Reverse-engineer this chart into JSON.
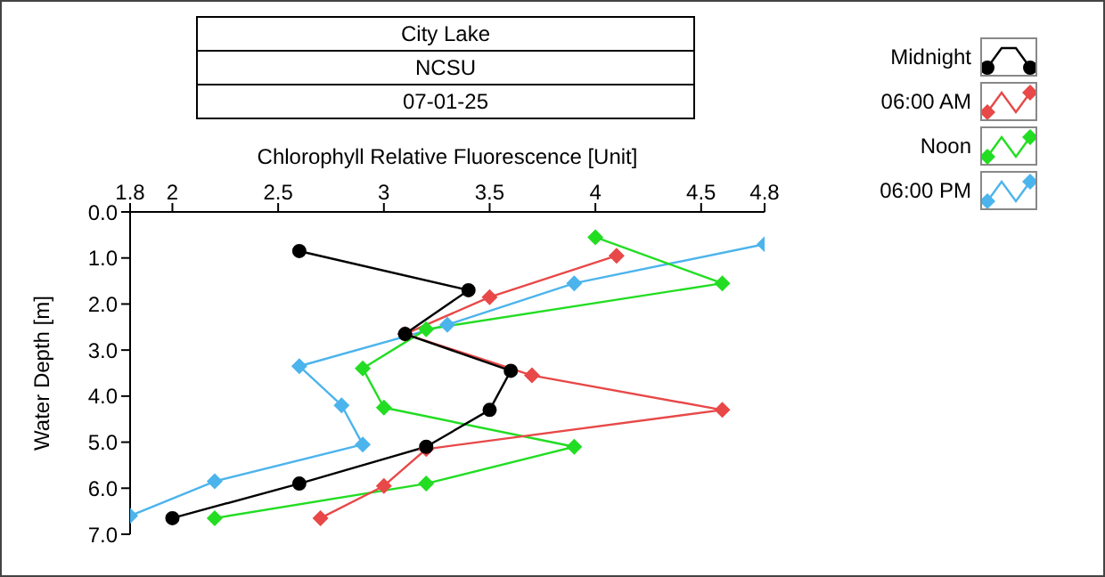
{
  "chart_data": {
    "type": "line",
    "title": "City Lake",
    "subtitle": "NCSU",
    "annotations": [
      "07-01-25"
    ],
    "xlabel": "Chlorophyll Relative Fluorescence [Unit]",
    "ylabel": "Water Depth [m]",
    "xlim": [
      1.8,
      4.8
    ],
    "xticks": [
      1.8,
      2,
      2.5,
      3,
      3.5,
      4,
      4.5,
      4.8
    ],
    "ylim": [
      7,
      0
    ],
    "yticks": [
      {
        "value": 0,
        "label": "0.0"
      },
      {
        "value": 1,
        "label": "1.0"
      },
      {
        "value": 2,
        "label": "2.0"
      },
      {
        "value": 3,
        "label": "3.0"
      },
      {
        "value": 4,
        "label": "4.0"
      },
      {
        "value": 5,
        "label": "5.0"
      },
      {
        "value": 6,
        "label": "6.0"
      },
      {
        "value": 7,
        "label": "7.0"
      }
    ],
    "legend": "top right",
    "line_style": "solid",
    "series": [
      {
        "name": "Midnight",
        "color": "#000000",
        "marker": "circle",
        "x": [
          2.6,
          3.4,
          3.1,
          3.6,
          3.5,
          3.2,
          2.6,
          2.0
        ],
        "values": [
          0.85,
          1.7,
          2.65,
          3.45,
          4.3,
          5.1,
          5.9,
          6.65
        ]
      },
      {
        "name": "06:00 AM",
        "color": "#e84848",
        "marker": "diamond",
        "x": [
          4.1,
          3.5,
          3.1,
          3.7,
          4.6,
          3.2,
          3.0,
          2.7
        ],
        "values": [
          0.95,
          1.85,
          2.65,
          3.55,
          4.3,
          5.15,
          5.95,
          6.65
        ]
      },
      {
        "name": "Noon",
        "color": "#22dd22",
        "marker": "diamond",
        "x": [
          4.0,
          4.6,
          3.2,
          2.9,
          3.0,
          3.9,
          3.2,
          2.2
        ],
        "values": [
          0.55,
          1.55,
          2.55,
          3.4,
          4.25,
          5.1,
          5.9,
          6.65
        ]
      },
      {
        "name": "06:00 PM",
        "color": "#4cb4ec",
        "marker": "diamond",
        "x": [
          4.8,
          3.9,
          3.3,
          2.6,
          2.8,
          2.9,
          2.2,
          1.8
        ],
        "values": [
          0.7,
          1.55,
          2.45,
          3.35,
          4.2,
          5.05,
          5.85,
          6.6
        ]
      }
    ]
  }
}
